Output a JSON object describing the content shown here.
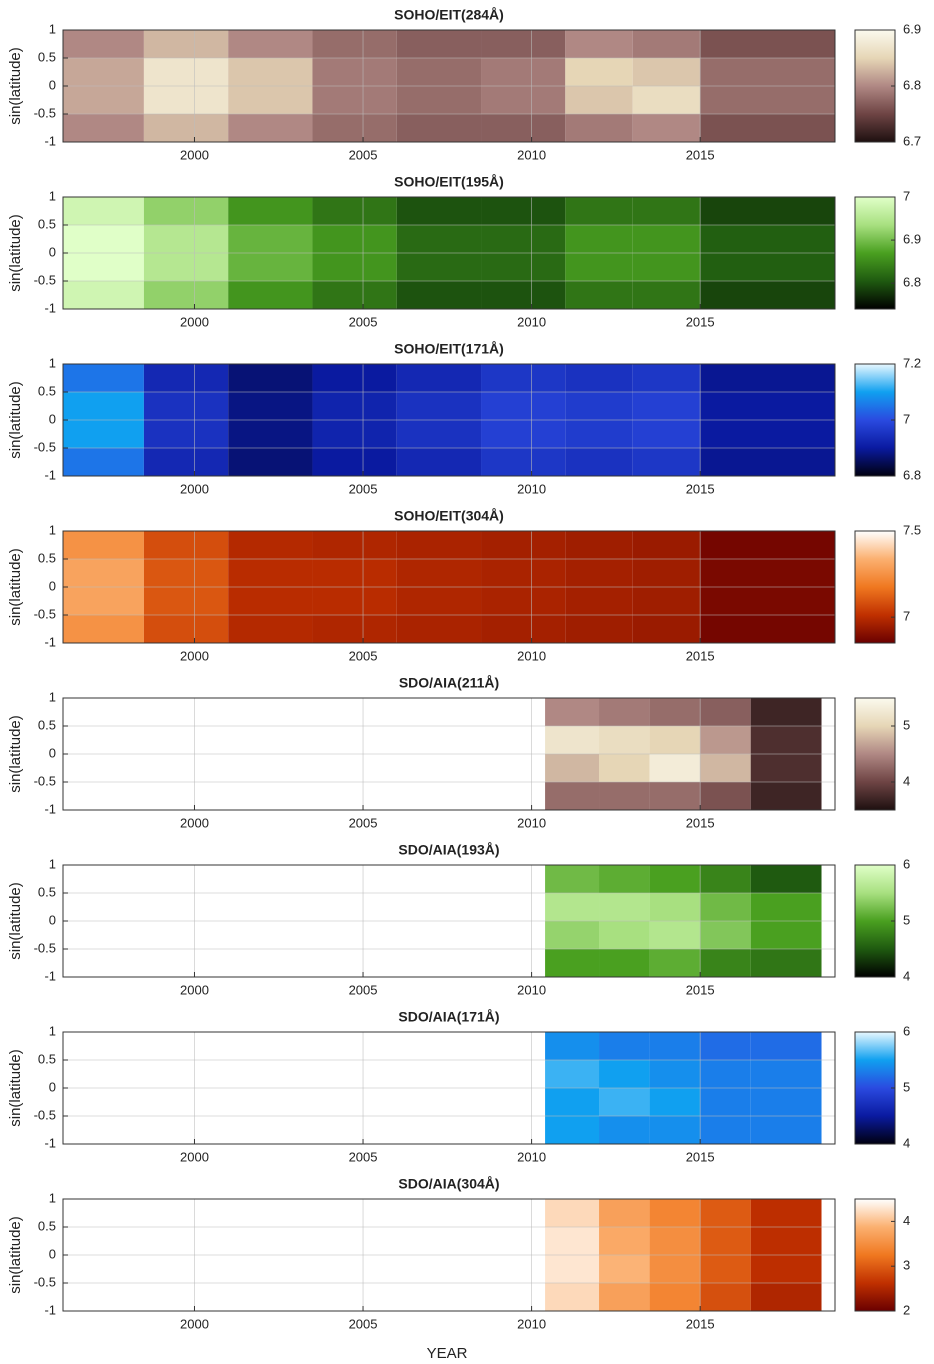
{
  "x_label": "YEAR",
  "chart_data": [
    {
      "type": "heatmap",
      "title": "SOHO/EIT(284Å)",
      "y_label": "sin(latitude)",
      "xlim": [
        1996.1,
        2019
      ],
      "ylim": [
        -1,
        1
      ],
      "xticks": [
        2000,
        2005,
        2010,
        2015
      ],
      "yticks": [
        -1,
        -0.5,
        0,
        0.5,
        1
      ],
      "grid": true,
      "x_edges": [
        1996.1,
        1998.5,
        2001,
        2003.5,
        2006,
        2008.5,
        2011,
        2013,
        2015,
        2019
      ],
      "y_edges": [
        1,
        0.5,
        0,
        -0.5,
        -1
      ],
      "values": [
        [
          6.8,
          6.83,
          6.8,
          6.78,
          6.77,
          6.77,
          6.8,
          6.79,
          6.76
        ],
        [
          6.82,
          6.87,
          6.84,
          6.79,
          6.78,
          6.79,
          6.85,
          6.84,
          6.78
        ],
        [
          6.82,
          6.87,
          6.84,
          6.79,
          6.78,
          6.79,
          6.84,
          6.86,
          6.78
        ],
        [
          6.8,
          6.83,
          6.8,
          6.78,
          6.77,
          6.77,
          6.79,
          6.8,
          6.76
        ]
      ],
      "colormap": [
        "#1e1010",
        "#6e4444",
        "#b08884",
        "#e6d6b6",
        "#fbfaee"
      ],
      "clim": [
        6.7,
        6.9
      ],
      "cticks": [
        6.7,
        6.8,
        6.9
      ]
    },
    {
      "type": "heatmap",
      "title": "SOHO/EIT(195Å)",
      "y_label": "sin(latitude)",
      "xlim": [
        1996.1,
        2019
      ],
      "ylim": [
        -1,
        1
      ],
      "xticks": [
        2000,
        2005,
        2010,
        2015
      ],
      "yticks": [
        -1,
        -0.5,
        0,
        0.5,
        1
      ],
      "grid": true,
      "x_edges": [
        1996.1,
        1998.5,
        2001,
        2003.5,
        2006,
        2008.5,
        2011,
        2013,
        2015,
        2019
      ],
      "y_edges": [
        1,
        0.5,
        0,
        -0.5,
        -1
      ],
      "values": [
        [
          6.98,
          6.92,
          6.86,
          6.83,
          6.8,
          6.8,
          6.83,
          6.83,
          6.79
        ],
        [
          7.0,
          6.95,
          6.89,
          6.86,
          6.82,
          6.82,
          6.86,
          6.86,
          6.81
        ],
        [
          7.0,
          6.95,
          6.89,
          6.86,
          6.82,
          6.82,
          6.86,
          6.86,
          6.81
        ],
        [
          6.98,
          6.92,
          6.86,
          6.83,
          6.8,
          6.8,
          6.83,
          6.83,
          6.79
        ]
      ],
      "colormap": [
        "#000000",
        "#1f5a10",
        "#4aa020",
        "#a8e080",
        "#e0ffc8"
      ],
      "clim": [
        6.74,
        7.0
      ],
      "cticks": [
        6.8,
        6.9,
        7
      ]
    },
    {
      "type": "heatmap",
      "title": "SOHO/EIT(171Å)",
      "y_label": "sin(latitude)",
      "xlim": [
        1996.1,
        2019
      ],
      "ylim": [
        -1,
        1
      ],
      "xticks": [
        2000,
        2005,
        2010,
        2015
      ],
      "yticks": [
        -1,
        -0.5,
        0,
        0.5,
        1
      ],
      "grid": true,
      "x_edges": [
        1996.1,
        1998.5,
        2001,
        2003.5,
        2006,
        2008.5,
        2011,
        2013,
        2015,
        2019
      ],
      "y_edges": [
        1,
        0.5,
        0,
        -0.5,
        -1
      ],
      "values": [
        [
          7.05,
          6.93,
          6.87,
          6.9,
          6.93,
          6.96,
          6.95,
          6.96,
          6.89
        ],
        [
          7.1,
          6.95,
          6.88,
          6.92,
          6.95,
          6.98,
          6.97,
          6.98,
          6.9
        ],
        [
          7.1,
          6.95,
          6.88,
          6.92,
          6.95,
          6.98,
          6.97,
          6.98,
          6.9
        ],
        [
          7.05,
          6.93,
          6.87,
          6.9,
          6.93,
          6.96,
          6.95,
          6.96,
          6.89
        ]
      ],
      "colormap": [
        "#000010",
        "#0a1aa0",
        "#2a4ae0",
        "#10a0f0",
        "#e8f8ff"
      ],
      "clim": [
        6.8,
        7.2
      ],
      "cticks": [
        6.8,
        7,
        7.2
      ]
    },
    {
      "type": "heatmap",
      "title": "SOHO/EIT(304Å)",
      "y_label": "sin(latitude)",
      "xlim": [
        1996.1,
        2019
      ],
      "ylim": [
        -1,
        1
      ],
      "xticks": [
        2000,
        2005,
        2010,
        2015
      ],
      "yticks": [
        -1,
        -0.5,
        0,
        0.5,
        1
      ],
      "grid": true,
      "x_edges": [
        1996.1,
        1998.5,
        2001,
        2003.5,
        2006,
        2008.5,
        2011,
        2013,
        2015,
        2019
      ],
      "y_edges": [
        1,
        0.5,
        0,
        -0.5,
        -1
      ],
      "values": [
        [
          7.25,
          7.08,
          6.99,
          6.98,
          6.97,
          6.96,
          6.95,
          6.94,
          6.87
        ],
        [
          7.3,
          7.1,
          7.0,
          7.0,
          6.98,
          6.97,
          6.96,
          6.95,
          6.88
        ],
        [
          7.3,
          7.1,
          7.0,
          7.0,
          6.98,
          6.97,
          6.96,
          6.95,
          6.88
        ],
        [
          7.25,
          7.08,
          6.99,
          6.98,
          6.97,
          6.96,
          6.95,
          6.94,
          6.87
        ]
      ],
      "colormap": [
        "#6a0000",
        "#c03000",
        "#f07820",
        "#fbb070",
        "#ffffff"
      ],
      "clim": [
        6.85,
        7.5
      ],
      "cticks": [
        7,
        7.5
      ]
    },
    {
      "type": "heatmap",
      "title": "SDO/AIA(211Å)",
      "y_label": "sin(latitude)",
      "xlim": [
        1996.1,
        2019
      ],
      "ylim": [
        -1,
        1
      ],
      "xticks": [
        2000,
        2005,
        2010,
        2015
      ],
      "yticks": [
        -1,
        -0.5,
        0,
        0.5,
        1
      ],
      "grid": true,
      "x_edges": [
        2010.4,
        2012,
        2013.5,
        2015,
        2016.5,
        2018.6
      ],
      "y_edges": [
        1,
        0.5,
        0,
        -0.5,
        -1
      ],
      "values": [
        [
          4.5,
          4.4,
          4.3,
          4.2,
          3.7
        ],
        [
          5.2,
          5.1,
          5.0,
          4.6,
          3.8
        ],
        [
          4.8,
          5.0,
          5.3,
          4.8,
          3.8
        ],
        [
          4.3,
          4.3,
          4.3,
          4.1,
          3.7
        ]
      ],
      "colormap": [
        "#1e1010",
        "#6e4444",
        "#b08884",
        "#e6d6b6",
        "#fbfaee"
      ],
      "clim": [
        3.5,
        5.5
      ],
      "cticks": [
        4,
        5
      ]
    },
    {
      "type": "heatmap",
      "title": "SDO/AIA(193Å)",
      "y_label": "sin(latitude)",
      "xlim": [
        1996.1,
        2019
      ],
      "ylim": [
        -1,
        1
      ],
      "xticks": [
        2000,
        2005,
        2010,
        2015
      ],
      "yticks": [
        -1,
        -0.5,
        0,
        0.5,
        1
      ],
      "grid": true,
      "x_edges": [
        2010.4,
        2012,
        2013.5,
        2015,
        2016.5,
        2018.6
      ],
      "y_edges": [
        1,
        0.5,
        0,
        -0.5,
        -1
      ],
      "values": [
        [
          5.2,
          5.1,
          5.0,
          4.8,
          4.5
        ],
        [
          5.6,
          5.6,
          5.5,
          5.2,
          5.0
        ],
        [
          5.4,
          5.5,
          5.6,
          5.3,
          5.0
        ],
        [
          5.0,
          5.0,
          5.1,
          4.8,
          4.7
        ]
      ],
      "colormap": [
        "#000000",
        "#1f5a10",
        "#4aa020",
        "#a8e080",
        "#e0ffc8"
      ],
      "clim": [
        4,
        6
      ],
      "cticks": [
        4,
        5,
        6
      ]
    },
    {
      "type": "heatmap",
      "title": "SDO/AIA(171Å)",
      "y_label": "sin(latitude)",
      "xlim": [
        1996.1,
        2019
      ],
      "ylim": [
        -1,
        1
      ],
      "xticks": [
        2000,
        2005,
        2010,
        2015
      ],
      "yticks": [
        -1,
        -0.5,
        0,
        0.5,
        1
      ],
      "grid": true,
      "x_edges": [
        2010.4,
        2012,
        2013.5,
        2015,
        2016.5,
        2018.6
      ],
      "y_edges": [
        1,
        0.5,
        0,
        -0.5,
        -1
      ],
      "values": [
        [
          5.4,
          5.3,
          5.3,
          5.2,
          5.2
        ],
        [
          5.6,
          5.5,
          5.4,
          5.3,
          5.3
        ],
        [
          5.5,
          5.6,
          5.5,
          5.3,
          5.3
        ],
        [
          5.5,
          5.4,
          5.4,
          5.3,
          5.3
        ]
      ],
      "colormap": [
        "#000010",
        "#0a1aa0",
        "#2a4ae0",
        "#10a0f0",
        "#e8f8ff"
      ],
      "clim": [
        4,
        6
      ],
      "cticks": [
        4,
        5,
        6
      ]
    },
    {
      "type": "heatmap",
      "title": "SDO/AIA(304Å)",
      "y_label": "sin(latitude)",
      "xlim": [
        1996.1,
        2019
      ],
      "ylim": [
        -1,
        1
      ],
      "xticks": [
        2000,
        2005,
        2010,
        2015
      ],
      "yticks": [
        -1,
        -0.5,
        0,
        0.5,
        1
      ],
      "grid": true,
      "x_edges": [
        2010.4,
        2012,
        2013.5,
        2015,
        2016.5,
        2018.6
      ],
      "y_edges": [
        1,
        0.5,
        0,
        -0.5,
        -1
      ],
      "values": [
        [
          4.2,
          3.7,
          3.4,
          3.0,
          2.6
        ],
        [
          4.3,
          3.8,
          3.5,
          3.0,
          2.6
        ],
        [
          4.3,
          3.9,
          3.5,
          3.0,
          2.6
        ],
        [
          4.2,
          3.7,
          3.4,
          2.9,
          2.5
        ]
      ],
      "colormap": [
        "#6a0000",
        "#c03000",
        "#f07820",
        "#fbb070",
        "#ffffff"
      ],
      "clim": [
        2,
        4.5
      ],
      "cticks": [
        2,
        3,
        4
      ]
    }
  ]
}
